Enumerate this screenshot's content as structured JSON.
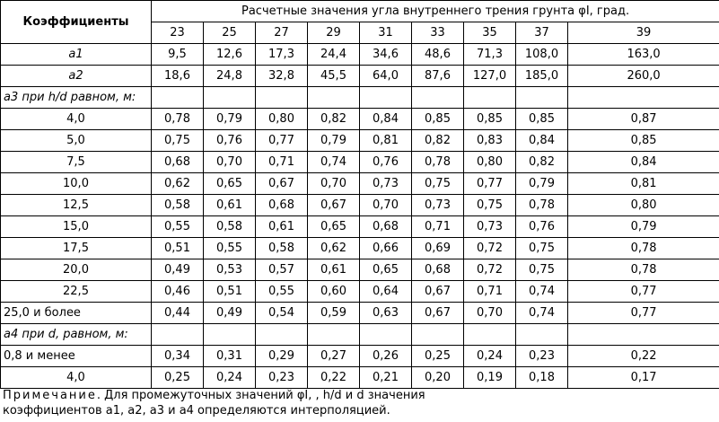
{
  "header": {
    "corner": "Коэффициенты",
    "span_title": "Расчетные значения угла внутреннего трения грунта φI, град.",
    "angles": [
      "23",
      "25",
      "27",
      "29",
      "31",
      "33",
      "35",
      "37",
      "39"
    ]
  },
  "rows_a": [
    {
      "label": "a1",
      "values": [
        "9,5",
        "12,6",
        "17,3",
        "24,4",
        "34,6",
        "48,6",
        "71,3",
        "108,0",
        "163,0"
      ]
    },
    {
      "label": "a2",
      "values": [
        "18,6",
        "24,8",
        "32,8",
        "45,5",
        "64,0",
        "87,6",
        "127,0",
        "185,0",
        "260,0"
      ]
    }
  ],
  "section_a3": "a3 при h/d равном, м:",
  "rows_a3": [
    {
      "label": "4,0",
      "values": [
        "0,78",
        "0,79",
        "0,80",
        "0,82",
        "0,84",
        "0,85",
        "0,85",
        "0,85",
        "0,87"
      ]
    },
    {
      "label": "5,0",
      "values": [
        "0,75",
        "0,76",
        "0,77",
        "0,79",
        "0,81",
        "0,82",
        "0,83",
        "0,84",
        "0,85"
      ]
    },
    {
      "label": "7,5",
      "values": [
        "0,68",
        "0,70",
        "0,71",
        "0,74",
        "0,76",
        "0,78",
        "0,80",
        "0,82",
        "0,84"
      ]
    },
    {
      "label": "10,0",
      "values": [
        "0,62",
        "0,65",
        "0,67",
        "0,70",
        "0,73",
        "0,75",
        "0,77",
        "0,79",
        "0,81"
      ]
    },
    {
      "label": "12,5",
      "values": [
        "0,58",
        "0,61",
        "0,68",
        "0,67",
        "0,70",
        "0,73",
        "0,75",
        "0,78",
        "0,80"
      ]
    },
    {
      "label": "15,0",
      "values": [
        "0,55",
        "0,58",
        "0,61",
        "0,65",
        "0,68",
        "0,71",
        "0,73",
        "0,76",
        "0,79"
      ]
    },
    {
      "label": "17,5",
      "values": [
        "0,51",
        "0,55",
        "0,58",
        "0,62",
        "0,66",
        "0,69",
        "0,72",
        "0,75",
        "0,78"
      ]
    },
    {
      "label": "20,0",
      "values": [
        "0,49",
        "0,53",
        "0,57",
        "0,61",
        "0,65",
        "0,68",
        "0,72",
        "0,75",
        "0,78"
      ]
    },
    {
      "label": "22,5",
      "values": [
        "0,46",
        "0,51",
        "0,55",
        "0,60",
        "0,64",
        "0,67",
        "0,71",
        "0,74",
        "0,77"
      ]
    },
    {
      "label": "25,0 и более",
      "values": [
        "0,44",
        "0,49",
        "0,54",
        "0,59",
        "0,63",
        "0,67",
        "0,70",
        "0,74",
        "0,77"
      ]
    }
  ],
  "section_a4": "a4 при d, равном, м:",
  "rows_a4": [
    {
      "label": "0,8 и менее",
      "values": [
        "0,34",
        "0,31",
        "0,29",
        "0,27",
        "0,26",
        "0,25",
        "0,24",
        "0,23",
        "0,22"
      ]
    },
    {
      "label": "4,0",
      "values": [
        "0,25",
        "0,24",
        "0,23",
        "0,22",
        "0,21",
        "0,20",
        "0,19",
        "0,18",
        "0,17"
      ]
    }
  ],
  "note": {
    "prefix": "Примечание",
    "line1": ". Для промежуточных значений φI, , h/d и d значения",
    "line2": "коэффициентов a1, a2, a3 и a4 определяются интерполяцией."
  }
}
